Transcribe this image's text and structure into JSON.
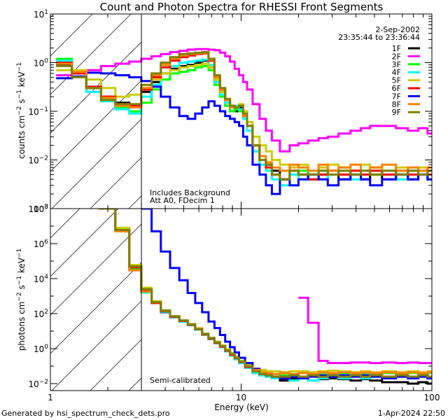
{
  "title": "Count and Photon Spectra for RHESSI Front Segments",
  "footer": {
    "generated_by": "Generated by hsi_spectrum_check_dets.pro",
    "timestamp": "1-Apr-2024 22:50"
  },
  "chart_data": [
    {
      "type": "line",
      "panel": "top",
      "title": "Count and Photon Spectra for RHESSI Front Segments",
      "xlabel": "Energy (keV)",
      "ylabel": "counts cm^-2 s^-1 keV^-1",
      "xscale": "log",
      "yscale": "log",
      "xlim": [
        1,
        100
      ],
      "ylim": [
        0.001,
        10
      ],
      "yticks": [
        {
          "value": 10,
          "label": "10^1"
        },
        {
          "value": 1,
          "label": "10^0"
        },
        {
          "value": 0.1,
          "label": "10^-1"
        },
        {
          "value": 0.01,
          "label": "10^-2"
        },
        {
          "value": 0.001,
          "label": "10^-3"
        }
      ],
      "annotations": [
        "2-Sep-2002",
        "23:35:44 to 23:36:44",
        "Includes Background",
        "Att A0, FDecim 1"
      ],
      "shaded_region_keV": [
        1,
        3
      ],
      "legend": {
        "placement": "top-right",
        "entries": [
          "1F",
          "2F",
          "3F",
          "4F",
          "5F",
          "6F",
          "7F",
          "8F",
          "9F"
        ]
      },
      "x": [
        1.2,
        1.4,
        1.7,
        2.0,
        2.4,
        2.8,
        3.2,
        3.6,
        4.0,
        4.5,
        5.0,
        5.5,
        6.0,
        6.5,
        7.0,
        7.5,
        8.0,
        8.5,
        9.0,
        9.5,
        10.0,
        10.5,
        11.0,
        12.0,
        13.0,
        14.0,
        15.0,
        17.0,
        19.0,
        21.0,
        24.0,
        27.0,
        30.0,
        35.0,
        40.0,
        45.0,
        50.0,
        60.0,
        70.0,
        80.0,
        90.0,
        100.0
      ],
      "series": [
        {
          "name": "1F",
          "color": "#000000",
          "values": [
            0.9,
            0.6,
            0.3,
            0.2,
            0.15,
            0.12,
            0.25,
            0.4,
            0.6,
            0.75,
            0.85,
            0.9,
            1.0,
            1.1,
            0.8,
            0.4,
            0.25,
            0.15,
            0.12,
            0.1,
            0.12,
            0.08,
            0.05,
            0.02,
            0.01,
            0.008,
            0.006,
            0.004,
            0.006,
            0.005,
            0.004,
            0.005,
            0.006,
            0.004,
            0.005,
            0.004,
            0.005,
            0.004,
            0.005,
            0.004,
            0.005,
            0.004
          ]
        },
        {
          "name": "2F",
          "color": "#ff00ff",
          "values": [
            0.55,
            0.6,
            0.7,
            0.85,
            0.95,
            1.05,
            1.2,
            1.35,
            1.5,
            1.65,
            1.75,
            1.85,
            1.9,
            1.9,
            1.85,
            1.8,
            1.6,
            1.35,
            1.05,
            0.75,
            0.55,
            0.4,
            0.28,
            0.14,
            0.07,
            0.04,
            0.025,
            0.015,
            0.02,
            0.022,
            0.025,
            0.028,
            0.03,
            0.035,
            0.04,
            0.045,
            0.05,
            0.05,
            0.045,
            0.04,
            0.045,
            0.035
          ]
        },
        {
          "name": "3F",
          "color": "#00ff00",
          "values": [
            1.2,
            0.6,
            0.3,
            0.18,
            0.12,
            0.1,
            0.15,
            0.28,
            0.45,
            0.6,
            0.65,
            0.7,
            0.8,
            0.85,
            0.7,
            0.35,
            0.2,
            0.13,
            0.1,
            0.11,
            0.1,
            0.07,
            0.04,
            0.015,
            0.008,
            0.006,
            0.005,
            0.004,
            0.005,
            0.006,
            0.005,
            0.006,
            0.005,
            0.006,
            0.005,
            0.006,
            0.005,
            0.006,
            0.005,
            0.006,
            0.005,
            0.006
          ]
        },
        {
          "name": "4F",
          "color": "#00ffff",
          "values": [
            1.1,
            0.65,
            0.25,
            0.16,
            0.11,
            0.09,
            0.2,
            0.35,
            0.6,
            0.85,
            1.0,
            1.05,
            1.1,
            1.15,
            0.9,
            0.4,
            0.22,
            0.15,
            0.12,
            0.13,
            0.11,
            0.07,
            0.04,
            0.015,
            0.008,
            0.006,
            0.004,
            0.003,
            0.005,
            0.004,
            0.005,
            0.004,
            0.006,
            0.005,
            0.004,
            0.005,
            0.006,
            0.005,
            0.004,
            0.006,
            0.005,
            0.004
          ]
        },
        {
          "name": "5F",
          "color": "#cccc00",
          "values": [
            0.7,
            0.7,
            0.45,
            0.3,
            0.2,
            0.22,
            0.3,
            0.45,
            0.6,
            0.7,
            0.8,
            0.85,
            0.9,
            0.95,
            0.8,
            0.45,
            0.25,
            0.17,
            0.13,
            0.12,
            0.14,
            0.1,
            0.06,
            0.03,
            0.02,
            0.015,
            0.01,
            0.008,
            0.007,
            0.008,
            0.006,
            0.007,
            0.008,
            0.007,
            0.006,
            0.008,
            0.007,
            0.006,
            0.007,
            0.006,
            0.007,
            0.006
          ]
        },
        {
          "name": "6F",
          "color": "#ff0000",
          "values": [
            1.0,
            0.6,
            0.32,
            0.2,
            0.14,
            0.13,
            0.28,
            0.5,
            0.8,
            1.1,
            1.3,
            1.4,
            1.5,
            1.55,
            1.1,
            0.5,
            0.28,
            0.17,
            0.13,
            0.12,
            0.13,
            0.08,
            0.05,
            0.02,
            0.01,
            0.007,
            0.005,
            0.004,
            0.006,
            0.005,
            0.004,
            0.005,
            0.006,
            0.005,
            0.006,
            0.005,
            0.006,
            0.005,
            0.006,
            0.005,
            0.006,
            0.005
          ]
        },
        {
          "name": "7F",
          "color": "#0000ff",
          "values": [
            0.48,
            0.52,
            0.62,
            0.6,
            0.55,
            0.5,
            0.42,
            0.32,
            0.2,
            0.12,
            0.08,
            0.07,
            0.09,
            0.12,
            0.16,
            0.13,
            0.1,
            0.08,
            0.07,
            0.06,
            0.05,
            0.03,
            0.02,
            0.008,
            0.005,
            0.003,
            0.002,
            0.004,
            0.003,
            0.004,
            0.005,
            0.004,
            0.003,
            0.004,
            0.005,
            0.004,
            0.003,
            0.004,
            0.005,
            0.004,
            0.005,
            0.004
          ]
        },
        {
          "name": "8F",
          "color": "#ff8000",
          "values": [
            0.95,
            0.65,
            0.3,
            0.19,
            0.13,
            0.12,
            0.3,
            0.55,
            0.9,
            1.2,
            1.4,
            1.5,
            1.55,
            1.6,
            1.15,
            0.5,
            0.28,
            0.17,
            0.12,
            0.12,
            0.13,
            0.08,
            0.05,
            0.02,
            0.012,
            0.009,
            0.007,
            0.006,
            0.008,
            0.007,
            0.006,
            0.008,
            0.006,
            0.007,
            0.008,
            0.006,
            0.007,
            0.008,
            0.006,
            0.007,
            0.006,
            0.007
          ]
        },
        {
          "name": "9F",
          "color": "#808000",
          "values": [
            0.85,
            0.5,
            0.3,
            0.17,
            0.14,
            0.14,
            0.35,
            0.6,
            1.0,
            1.3,
            1.5,
            1.55,
            1.6,
            1.65,
            1.2,
            0.55,
            0.3,
            0.18,
            0.13,
            0.12,
            0.13,
            0.09,
            0.05,
            0.02,
            0.01,
            0.008,
            0.005,
            0.004,
            0.006,
            0.005,
            0.005,
            0.006,
            0.005,
            0.006,
            0.005,
            0.006,
            0.005,
            0.006,
            0.005,
            0.006,
            0.005,
            0.006
          ]
        }
      ]
    },
    {
      "type": "line",
      "panel": "bottom",
      "xlabel": "Energy (keV)",
      "ylabel": "photons cm^-2 s^-1 keV^-1",
      "xscale": "log",
      "yscale": "log",
      "xlim": [
        1,
        100
      ],
      "ylim": [
        0.005,
        100000000
      ],
      "xticks": [
        {
          "value": 1,
          "label": "1"
        },
        {
          "value": 10,
          "label": "10"
        },
        {
          "value": 100,
          "label": "100"
        }
      ],
      "yticks": [
        {
          "value": 100000000,
          "label": "10^8"
        },
        {
          "value": 1000000,
          "label": "10^6"
        },
        {
          "value": 10000,
          "label": "10^4"
        },
        {
          "value": 100,
          "label": "10^2"
        },
        {
          "value": 1,
          "label": "10^0"
        },
        {
          "value": 0.01,
          "label": "10^-2"
        }
      ],
      "annotations": [
        "Semi-calibrated"
      ],
      "shaded_region_keV": [
        1,
        3
      ],
      "x": [
        2.0,
        2.4,
        2.8,
        3.2,
        3.6,
        4.0,
        4.5,
        5.0,
        5.5,
        6.0,
        6.5,
        7.0,
        7.5,
        8.0,
        8.5,
        9.0,
        9.5,
        10.0,
        11.0,
        12.0,
        13.0,
        14.0,
        15.0,
        17.0,
        19.0,
        21.0,
        24.0,
        27.0,
        30.0,
        35.0,
        40.0,
        45.0,
        50.0,
        60.0,
        70.0,
        80.0,
        90.0,
        100.0
      ],
      "series": [
        {
          "name": "1F",
          "color": "#000000",
          "values": [
            100000000,
            6000000,
            35000,
            2000,
            400,
            120,
            60,
            35,
            22,
            12,
            6,
            3.5,
            2,
            1.2,
            0.7,
            0.4,
            0.25,
            0.15,
            0.08,
            0.04,
            0.03,
            0.025,
            0.02,
            0.015,
            0.02,
            0.02,
            0.015,
            0.018,
            0.02,
            0.018,
            0.015,
            0.018,
            0.015,
            0.012,
            0.012,
            0.01,
            0.012,
            0.01
          ]
        },
        {
          "name": "2F",
          "color": "#ff00ff",
          "values": [
            null,
            null,
            null,
            null,
            null,
            null,
            null,
            null,
            null,
            null,
            null,
            null,
            null,
            null,
            null,
            null,
            null,
            null,
            null,
            null,
            null,
            null,
            null,
            null,
            null,
            800,
            30,
            0.2,
            0.15,
            0.15,
            0.16,
            0.16,
            0.15,
            0.16,
            0.15,
            0.16,
            0.15,
            0.15
          ]
        },
        {
          "name": "3F",
          "color": "#00ff00",
          "values": [
            100000000,
            6500000,
            40000,
            2500,
            500,
            150,
            70,
            40,
            25,
            14,
            7,
            4,
            2.3,
            1.4,
            0.8,
            0.5,
            0.3,
            0.2,
            0.1,
            0.06,
            0.05,
            0.04,
            0.035,
            0.03,
            0.035,
            0.04,
            0.035,
            0.04,
            0.035,
            0.04,
            0.035,
            0.04,
            0.035,
            0.04,
            0.035,
            0.04,
            0.035,
            0.04
          ]
        },
        {
          "name": "4F",
          "color": "#00ffff",
          "values": [
            100000000,
            6000000,
            30000,
            1600,
            400,
            130,
            60,
            35,
            22,
            12,
            6,
            3.5,
            2,
            1.2,
            0.7,
            0.4,
            0.25,
            0.15,
            0.08,
            0.04,
            0.03,
            0.025,
            0.02,
            0.02,
            0.015,
            0.02,
            0.015,
            0.02,
            0.025,
            0.02,
            0.025,
            0.02,
            0.025,
            0.02,
            0.025,
            0.02,
            0.025,
            0.02
          ]
        },
        {
          "name": "5F",
          "color": "#cccc00",
          "values": [
            100000000,
            8000000,
            60000,
            3000,
            500,
            150,
            70,
            40,
            25,
            14,
            7,
            4,
            2.5,
            1.5,
            0.9,
            0.55,
            0.35,
            0.2,
            0.12,
            0.07,
            0.06,
            0.05,
            0.05,
            0.045,
            0.05,
            0.05,
            0.045,
            0.05,
            0.055,
            0.05,
            0.045,
            0.05,
            0.045,
            0.05,
            0.045,
            0.05,
            0.045,
            0.05
          ]
        },
        {
          "name": "6F",
          "color": "#ff0000",
          "values": [
            100000000,
            6000000,
            45000,
            2200,
            400,
            140,
            65,
            38,
            23,
            13,
            6.5,
            3.7,
            2.1,
            1.3,
            0.75,
            0.45,
            0.28,
            0.17,
            0.09,
            0.05,
            0.035,
            0.03,
            0.025,
            0.025,
            0.03,
            0.025,
            0.03,
            0.025,
            0.03,
            0.025,
            0.03,
            0.025,
            0.03,
            0.025,
            0.03,
            0.025,
            0.03,
            0.025
          ]
        },
        {
          "name": "7F",
          "color": "#0000ff",
          "values": [
            null,
            null,
            null,
            100000000,
            5000000,
            350000,
            40000,
            8000,
            1500,
            400,
            120,
            35,
            15,
            6,
            2.5,
            1.2,
            0.6,
            0.3,
            0.15,
            0.07,
            0.04,
            0.03,
            0.025,
            0.02,
            0.025,
            0.02,
            0.025,
            0.03,
            0.025,
            0.03,
            0.025,
            0.03,
            0.025,
            0.02,
            0.025,
            0.02,
            0.025,
            0.02
          ]
        },
        {
          "name": "8F",
          "color": "#ff8000",
          "values": [
            100000000,
            5000000,
            30000,
            1800,
            450,
            150,
            70,
            40,
            25,
            14,
            7,
            4,
            2.3,
            1.4,
            0.8,
            0.5,
            0.3,
            0.18,
            0.1,
            0.06,
            0.045,
            0.04,
            0.035,
            0.04,
            0.035,
            0.04,
            0.035,
            0.045,
            0.04,
            0.045,
            0.04,
            0.045,
            0.04,
            0.045,
            0.04,
            0.045,
            0.04,
            0.045
          ]
        },
        {
          "name": "9F",
          "color": "#808000",
          "values": [
            100000000,
            6000000,
            50000,
            2500,
            450,
            150,
            70,
            40,
            24,
            13,
            7,
            4,
            2.3,
            1.4,
            0.8,
            0.5,
            0.3,
            0.18,
            0.1,
            0.05,
            0.035,
            0.03,
            0.025,
            0.025,
            0.03,
            0.025,
            0.03,
            0.025,
            0.03,
            0.025,
            0.03,
            0.025,
            0.03,
            0.025,
            0.03,
            0.025,
            0.03,
            0.025
          ]
        }
      ]
    }
  ]
}
